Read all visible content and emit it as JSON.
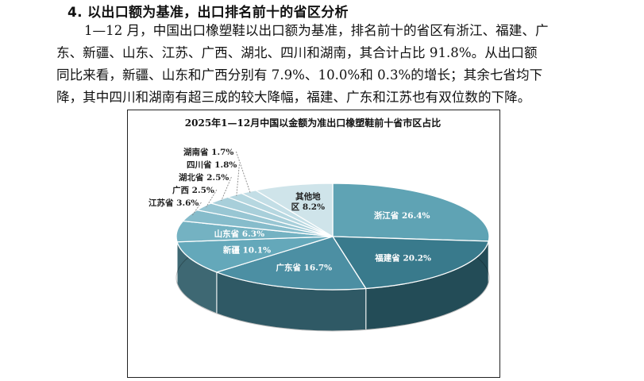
{
  "section": {
    "heading": "4. 以出口额为基准，出口排名前十的省区分析",
    "lines": [
      "1—12 月，中国出口橡塑鞋以出口额为基准，排名前十的省区有浙江、福建、广",
      "东、新疆、山东、江苏、广西、湖北、四川和湖南，其合计占比 91.8%。从出口额",
      "同比来看，新疆、山东和广西分别有 7.9%、10.0%和 0.3%的增长；其余七省均下",
      "降，其中四川和湖南有超三成的较大降幅，福建、广东和江苏也有双位数的下降。"
    ]
  },
  "chart_data": {
    "type": "pie",
    "title": "2025年1—12月中国以金额为准出口橡塑鞋前十省市区占比",
    "slices": [
      {
        "name": "浙江省",
        "value": 26.4,
        "label": "浙江省 26.4%",
        "color": "#5fa3b4",
        "label_inside": true
      },
      {
        "name": "福建省",
        "value": 20.2,
        "label": "福建省 20.2%",
        "color": "#397a8c",
        "label_inside": true
      },
      {
        "name": "广东省",
        "value": 16.7,
        "label": "广东省 16.7%",
        "color": "#4c8fa3",
        "label_inside": true
      },
      {
        "name": "新疆",
        "value": 10.1,
        "label": "新疆 10.1%",
        "color": "#64a8ba",
        "label_inside": true
      },
      {
        "name": "山东省",
        "value": 6.3,
        "label": "山东省 6.3%",
        "color": "#74b2c2",
        "label_inside": true
      },
      {
        "name": "江苏省",
        "value": 3.6,
        "label": "江苏省 3.6%",
        "color": "#86bccb",
        "label_inside": false
      },
      {
        "name": "广西",
        "value": 2.5,
        "label": "广西 2.5%",
        "color": "#98c6d3",
        "label_inside": false
      },
      {
        "name": "湖北省",
        "value": 2.5,
        "label": "湖北省 2.5%",
        "color": "#a8cfda",
        "label_inside": false
      },
      {
        "name": "四川省",
        "value": 1.8,
        "label": "四川省 1.8%",
        "color": "#b6d7e0",
        "label_inside": false
      },
      {
        "name": "湖南省",
        "value": 1.7,
        "label": "湖南省 1.7%",
        "color": "#c3dee6",
        "label_inside": false
      },
      {
        "name": "其他地区",
        "value": 8.2,
        "label_lines": [
          "其他地",
          "区 8.2%"
        ],
        "color": "#cfe4ea",
        "label_inside": true
      }
    ]
  }
}
